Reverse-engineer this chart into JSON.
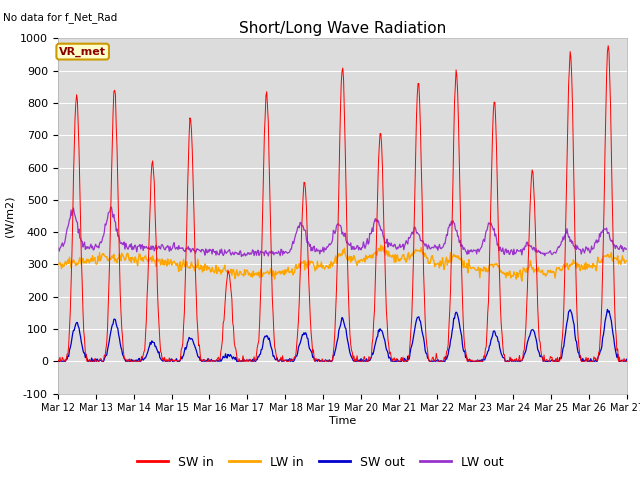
{
  "title": "Short/Long Wave Radiation",
  "ylabel": "(W/m2)",
  "xlabel": "Time",
  "ylim": [
    -100,
    1000
  ],
  "bg_color": "#dcdcdc",
  "fig_color": "#ffffff",
  "text_no_data": "No data for f_Net_Rad",
  "legend_label": "VR_met",
  "colors": {
    "SW_in": "#ff0000",
    "LW_in": "#ffa500",
    "SW_out": "#0000cc",
    "LW_out": "#9933cc"
  },
  "legend_items": [
    "SW in",
    "LW in",
    "SW out",
    "LW out"
  ],
  "xtick_labels": [
    "Mar 12",
    "Mar 13",
    "Mar 14",
    "Mar 15",
    "Mar 16",
    "Mar 17",
    "Mar 18",
    "Mar 19",
    "Mar 20",
    "Mar 21",
    "Mar 22",
    "Mar 23",
    "Mar 24",
    "Mar 25",
    "Mar 26",
    "Mar 27"
  ],
  "yticks": [
    -100,
    0,
    100,
    200,
    300,
    400,
    500,
    600,
    700,
    800,
    900,
    1000
  ],
  "n_days": 15,
  "sw_in_peaks": [
    830,
    840,
    615,
    750,
    280,
    840,
    550,
    910,
    710,
    870,
    900,
    805,
    590,
    960,
    980
  ],
  "sw_out_peaks": [
    120,
    130,
    60,
    70,
    20,
    80,
    90,
    130,
    100,
    140,
    150,
    90,
    100,
    160,
    155
  ],
  "lw_out_peak_heights": [
    460,
    460,
    0,
    0,
    0,
    0,
    430,
    420,
    430,
    400,
    430,
    430,
    370,
    400,
    410
  ]
}
